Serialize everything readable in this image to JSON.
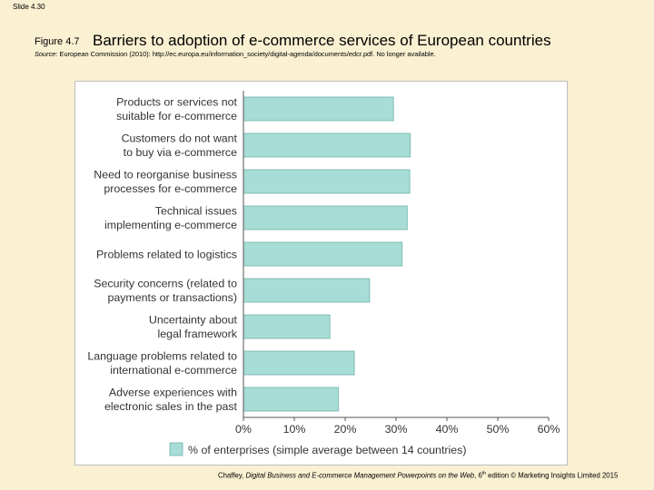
{
  "slide": {
    "number": "Slide 4.30"
  },
  "figure": {
    "label": "Figure 4.7",
    "title": "Barriers to adoption of e‑commerce services of European countries"
  },
  "source": {
    "label": "Source",
    "text": ": European Commission (2010): http://ec.europa.eu/information_society/digital-agenda/documents/edcr.pdf. No longer available."
  },
  "footer": {
    "author": "Chaffey, ",
    "title_italic": "Digital Business and E-commerce Management Powerpoints on the Web",
    "edition_pre": ", 6",
    "edition_sup": "th",
    "edition_post": " edition © Marketing Insights Limited 2015"
  },
  "colors": {
    "bar_fill": "#a8dcd6",
    "bar_stroke": "#6fb3ab",
    "background": "#faf0d2"
  },
  "chart_data": {
    "type": "bar",
    "orientation": "horizontal",
    "categories": [
      [
        "Products or services not",
        "suitable for e-commerce"
      ],
      [
        "Customers do not want",
        "to buy via e-commerce"
      ],
      [
        "Need to reorganise business",
        "processes for e-commerce"
      ],
      [
        "Technical issues",
        "implementing e-commerce"
      ],
      [
        "Problems related to logistics"
      ],
      [
        "Security concerns (related to",
        "payments or transactions)"
      ],
      [
        "Uncertainty about",
        "legal framework"
      ],
      [
        "Language problems related to",
        "international e-commerce"
      ],
      [
        "Adverse experiences with",
        "electronic sales in the past"
      ]
    ],
    "series": [
      {
        "name": "% of enterprises (simple average between 14 countries)",
        "values": [
          29.5,
          32.8,
          32.7,
          32.2,
          31.2,
          24.8,
          17.0,
          21.8,
          18.7
        ]
      }
    ],
    "xlim": [
      0,
      60
    ],
    "xticks": [
      "0%",
      "10%",
      "20%",
      "30%",
      "40%",
      "50%",
      "60%"
    ],
    "grid": false,
    "legend_position": "bottom"
  }
}
